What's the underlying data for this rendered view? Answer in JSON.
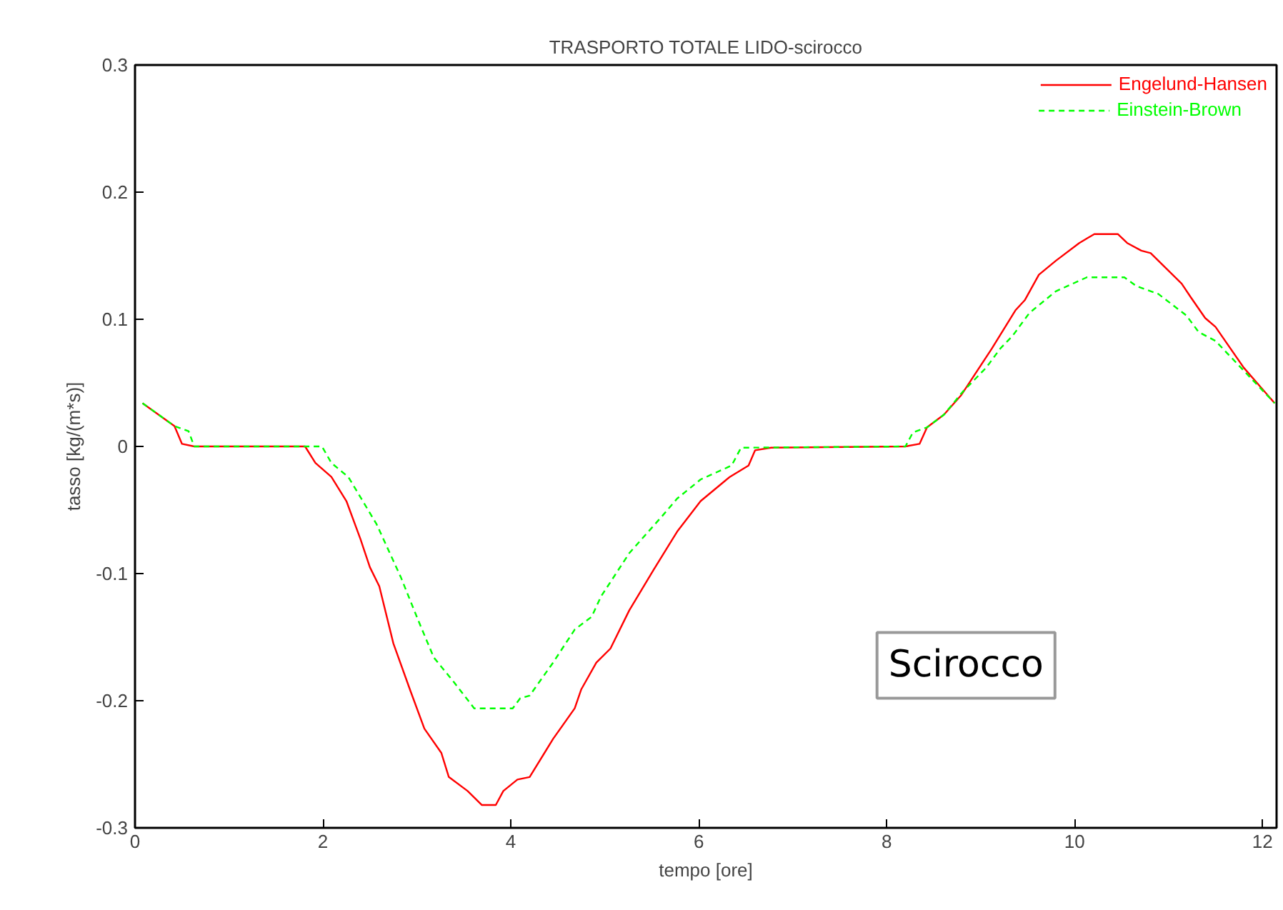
{
  "chart_data": {
    "type": "line",
    "title": "TRASPORTO TOTALE LIDO-scirocco",
    "xlabel": "tempo [ore]",
    "ylabel": "tasso [kg/(m*s)]",
    "xlim": [
      0,
      12.15
    ],
    "ylim": [
      -0.3,
      0.3
    ],
    "xticks": [
      0,
      2,
      4,
      6,
      8,
      10,
      12
    ],
    "yticks": [
      -0.3,
      -0.2,
      -0.1,
      0,
      0.1,
      0.2,
      0.3
    ],
    "grid": false,
    "legend": "top right",
    "annotations": [
      "Scirocco"
    ],
    "series": [
      {
        "name": "Engelund-Hansen",
        "color": "#ff0000",
        "line_style": "solid",
        "x": [
          0.08,
          0.42,
          0.5,
          0.63,
          1.81,
          1.92,
          2.09,
          2.25,
          2.4,
          2.5,
          2.6,
          2.75,
          2.93,
          3.08,
          3.26,
          3.34,
          3.54,
          3.69,
          3.84,
          3.92,
          4.07,
          4.2,
          4.45,
          4.68,
          4.75,
          4.91,
          5.06,
          5.26,
          5.52,
          5.77,
          6.02,
          6.33,
          6.53,
          6.6,
          6.77,
          8.2,
          8.35,
          8.43,
          8.61,
          8.79,
          9.12,
          9.37,
          9.47,
          9.62,
          9.8,
          10.05,
          10.21,
          10.46,
          10.56,
          10.71,
          10.81,
          11.14,
          11.24,
          11.39,
          11.5,
          11.8,
          12.13
        ],
        "values": [
          0.034,
          0.016,
          0.002,
          0,
          0,
          -0.013,
          -0.024,
          -0.043,
          -0.073,
          -0.095,
          -0.11,
          -0.155,
          -0.192,
          -0.222,
          -0.241,
          -0.26,
          -0.271,
          -0.282,
          -0.282,
          -0.271,
          -0.262,
          -0.26,
          -0.23,
          -0.206,
          -0.191,
          -0.17,
          -0.159,
          -0.129,
          -0.097,
          -0.067,
          -0.043,
          -0.024,
          -0.015,
          -0.003,
          -0.001,
          0,
          0.002,
          0.015,
          0.025,
          0.04,
          0.077,
          0.107,
          0.115,
          0.135,
          0.146,
          0.16,
          0.167,
          0.167,
          0.16,
          0.154,
          0.152,
          0.128,
          0.117,
          0.101,
          0.094,
          0.062,
          0.034
        ]
      },
      {
        "name": "Einstein-Brown",
        "color": "#00ff00",
        "line_style": "dashed",
        "x": [
          0.08,
          0.42,
          0.57,
          0.63,
          1.99,
          2.09,
          2.27,
          2.57,
          2.83,
          3.01,
          3.18,
          3.39,
          3.61,
          4.02,
          4.1,
          4.2,
          4.45,
          4.68,
          4.86,
          4.96,
          5.26,
          5.62,
          5.77,
          6.02,
          6.35,
          6.45,
          8.2,
          8.28,
          8.43,
          8.61,
          8.81,
          9.06,
          9.21,
          9.34,
          9.52,
          9.8,
          9.98,
          10.13,
          10.53,
          10.66,
          10.89,
          11.19,
          11.32,
          11.5,
          12.13
        ],
        "values": [
          0.034,
          0.016,
          0.012,
          0,
          0,
          -0.013,
          -0.024,
          -0.061,
          -0.103,
          -0.136,
          -0.166,
          -0.185,
          -0.206,
          -0.206,
          -0.198,
          -0.196,
          -0.17,
          -0.144,
          -0.134,
          -0.118,
          -0.084,
          -0.054,
          -0.041,
          -0.026,
          -0.015,
          -0.001,
          0,
          0.011,
          0.015,
          0.025,
          0.043,
          0.062,
          0.077,
          0.087,
          0.105,
          0.122,
          0.128,
          0.133,
          0.133,
          0.126,
          0.12,
          0.103,
          0.09,
          0.083,
          0.034
        ]
      }
    ]
  }
}
